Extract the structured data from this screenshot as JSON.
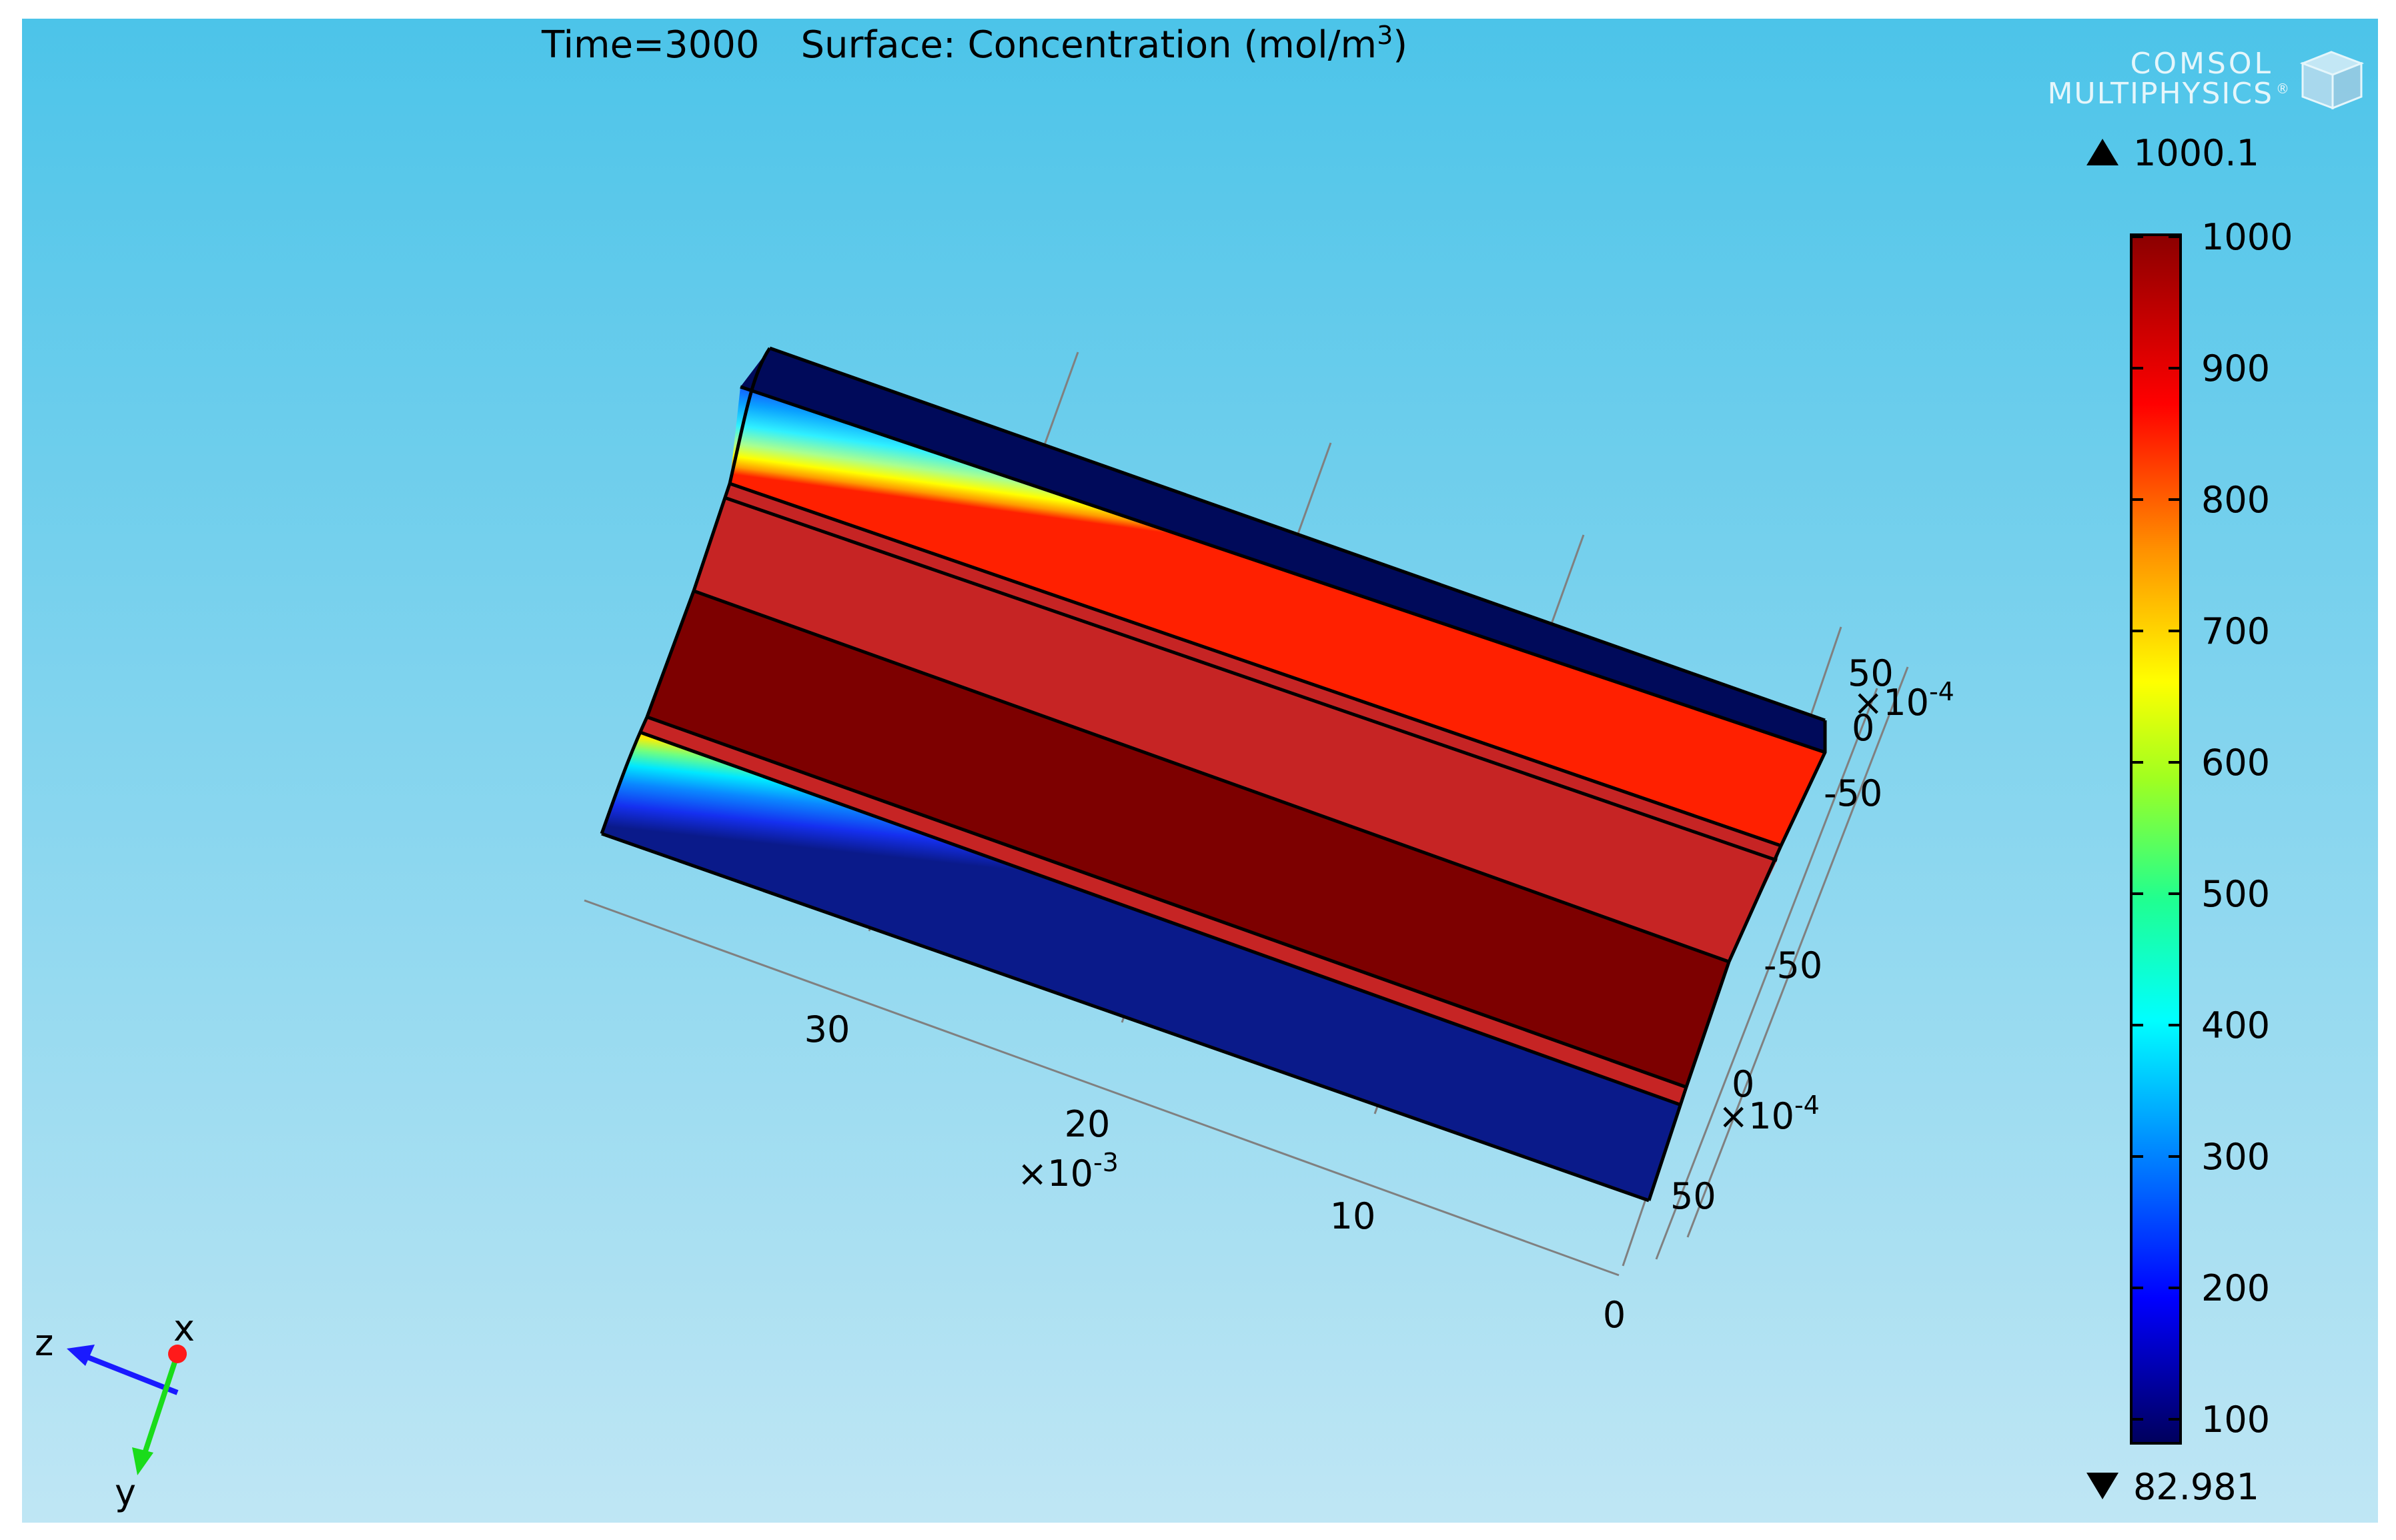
{
  "plot": {
    "title_time": "Time=3000",
    "title_expr": "Surface: Concentration (mol/m",
    "title_exp": "3",
    "title_close": ")"
  },
  "logo": {
    "line1": "COMSOL",
    "line2": "MULTIPHYSICS",
    "registered": "®"
  },
  "colorbar": {
    "max_label": "1000.1",
    "min_label": "82.981",
    "ticks": [
      "1000",
      "900",
      "800",
      "700",
      "600",
      "500",
      "400",
      "300",
      "200",
      "100"
    ],
    "range": [
      82.981,
      1000.1
    ],
    "colormap": "rainbow",
    "stops": [
      "#00005c",
      "#0000ff",
      "#00a0ff",
      "#00ffff",
      "#30ff80",
      "#d0ff00",
      "#ffff00",
      "#ff9000",
      "#ff0000",
      "#8b0000"
    ]
  },
  "axes": {
    "x_ticks": [
      "30",
      "20",
      "10",
      "0"
    ],
    "x_scale": "×10",
    "x_scale_exp": "-3",
    "y_ticks_upper": [
      "50",
      "0",
      "-50"
    ],
    "y_ticks_lower": [
      "-50",
      "0",
      "50"
    ],
    "y_scale": "×10",
    "y_scale_exp": "-4"
  },
  "triad": {
    "z": "z",
    "x": "x",
    "y": "y",
    "z_color": "#1a1aff",
    "x_color": "#ff1a1a",
    "y_color": "#1adc1a"
  },
  "scene_colors": {
    "bg_top": "#4cc4e9",
    "bg_bottom": "#bfe6f4",
    "dark_red": "#7d0000",
    "red": "#c62424",
    "dark_navy": "#000a5a"
  }
}
